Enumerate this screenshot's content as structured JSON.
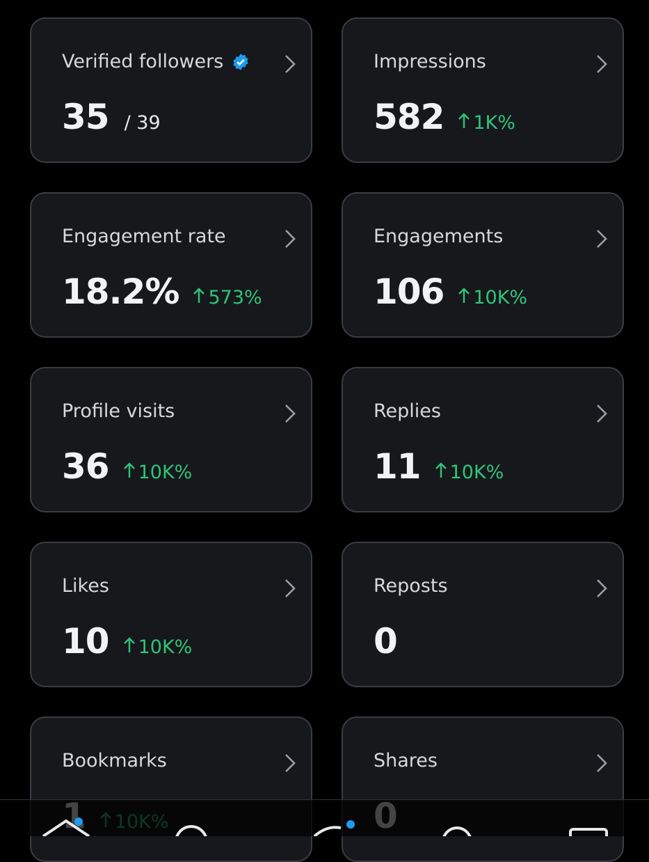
{
  "cards": [
    {
      "label": "Verified followers",
      "verified": true,
      "value": "35",
      "secondary": "/ 39"
    },
    {
      "label": "Impressions",
      "value": "582",
      "change": "1K%"
    },
    {
      "label": "Engagement rate",
      "value": "18.2%",
      "change": "573%"
    },
    {
      "label": "Engagements",
      "value": "106",
      "change": "10K%"
    },
    {
      "label": "Profile visits",
      "value": "36",
      "change": "10K%"
    },
    {
      "label": "Replies",
      "value": "11",
      "change": "10K%"
    },
    {
      "label": "Likes",
      "value": "10",
      "change": "10K%"
    },
    {
      "label": "Reposts",
      "value": "0"
    },
    {
      "label": "Bookmarks",
      "value": "1",
      "change": "10K%"
    },
    {
      "label": "Shares",
      "value": "0"
    }
  ]
}
